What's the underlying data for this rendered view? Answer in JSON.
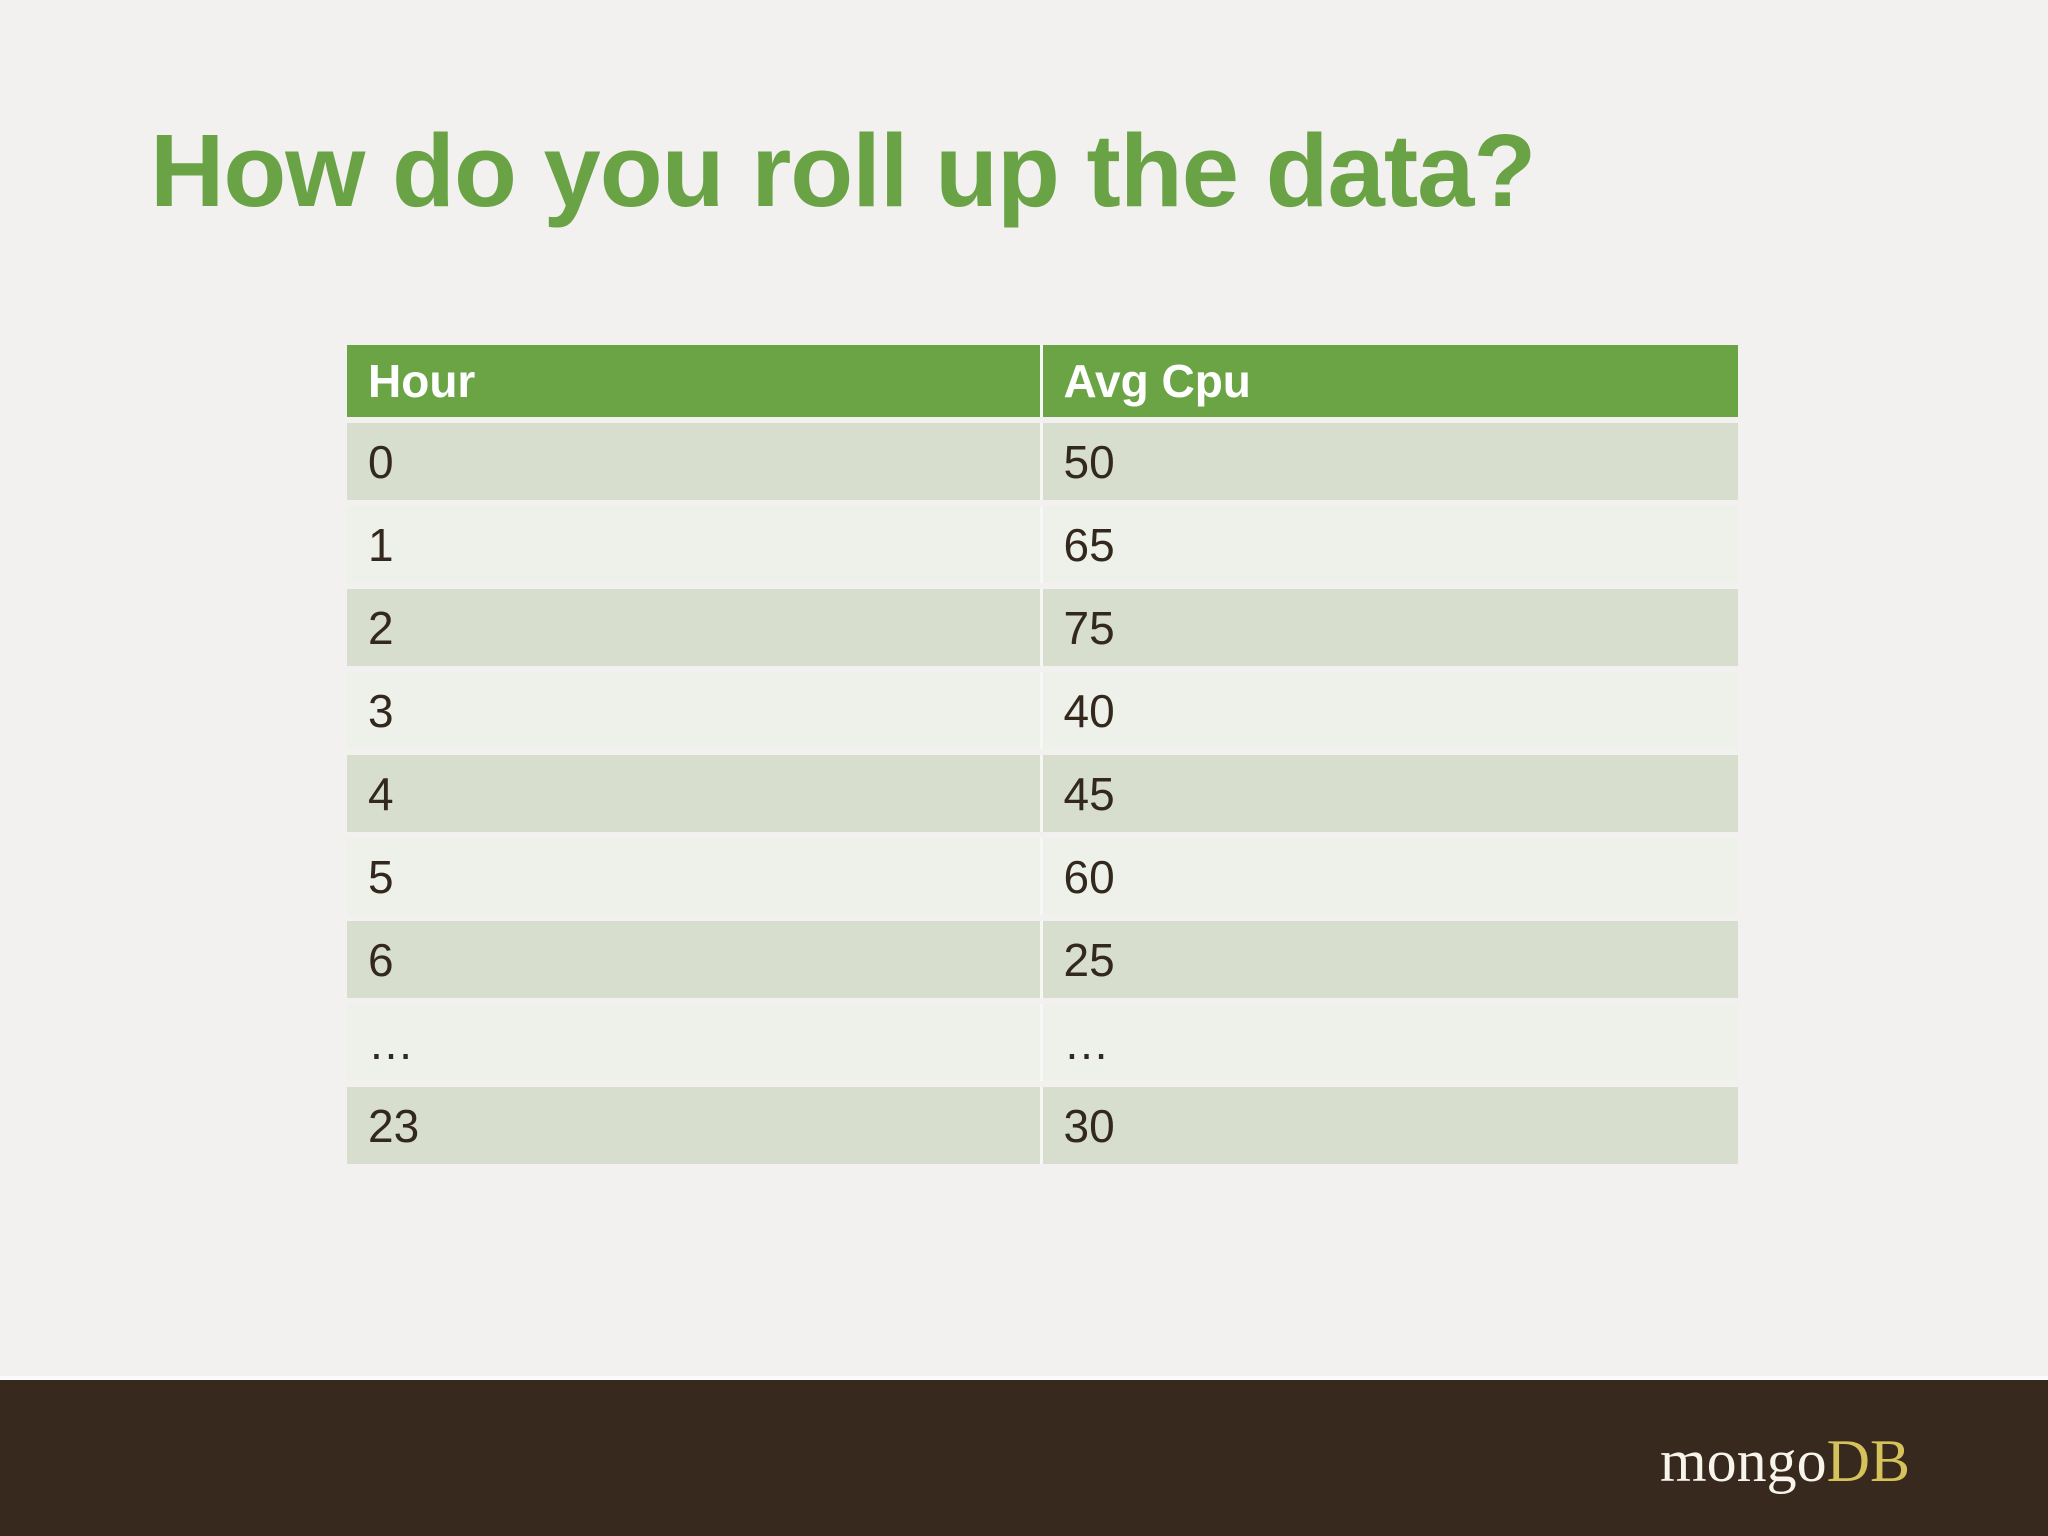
{
  "title": "How do you roll up the data?",
  "table": {
    "columns": [
      "Hour",
      "Avg Cpu"
    ],
    "rows": [
      [
        "0",
        "50"
      ],
      [
        "1",
        "65"
      ],
      [
        "2",
        "75"
      ],
      [
        "3",
        "40"
      ],
      [
        "4",
        "45"
      ],
      [
        "5",
        "60"
      ],
      [
        "6",
        "25"
      ],
      [
        "…",
        "…"
      ],
      [
        "23",
        "30"
      ]
    ]
  },
  "footer": {
    "logo_mongo": "mongo",
    "logo_db": "DB"
  },
  "colors": {
    "title_green": "#69a345",
    "header_green": "#6ba445",
    "row_dark": "#d7decd",
    "row_light": "#eef1e9",
    "background": "#f2f1ef",
    "cell_text": "#33281d",
    "footer_brown": "#38291e",
    "logo_white": "#f7f4ec",
    "logo_gold": "#d5c25b"
  }
}
